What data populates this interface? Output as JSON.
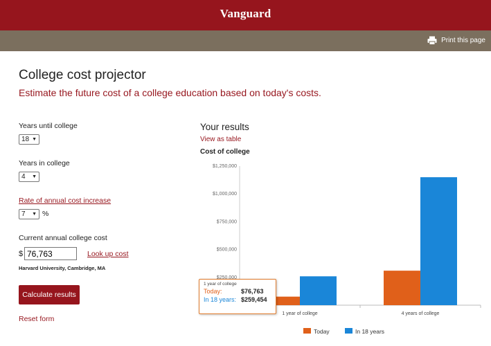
{
  "header": {
    "brand": "Vanguard"
  },
  "toolbar": {
    "print_label": "Print this page"
  },
  "page": {
    "title": "College cost projector",
    "subtitle": "Estimate the future cost of a college education based on today's costs."
  },
  "form": {
    "years_until_label": "Years until college",
    "years_until_value": "18",
    "years_in_label": "Years in college",
    "years_in_value": "4",
    "rate_label": "Rate of annual cost increase",
    "rate_value": "7",
    "rate_unit": "%",
    "cost_label": "Current annual college cost",
    "currency_symbol": "$",
    "cost_value": "76,763",
    "lookup_label": "Look up cost",
    "school_name": "Harvard University, Cambridge, MA",
    "calculate_label": "Calculate results",
    "reset_label": "Reset form"
  },
  "results": {
    "title": "Your results",
    "view_table_label": "View as table"
  },
  "chart_data": {
    "type": "bar",
    "title": "Cost of college",
    "categories": [
      "1 year of college",
      "4 years of college"
    ],
    "series": [
      {
        "name": "Today",
        "color": "#e0601a",
        "values": [
          76763,
          310000
        ]
      },
      {
        "name": "In 18 years",
        "color": "#1a86d8",
        "values": [
          259454,
          1150000
        ]
      }
    ],
    "yticks": [
      "$250,000",
      "$500,000",
      "$750,000",
      "$1,000,000",
      "$1,250,000"
    ],
    "ylim": [
      0,
      1250000
    ],
    "grid": false,
    "legend": "bottom-center",
    "tooltip": {
      "header": "1 year of college",
      "today_label": "Today:",
      "today_value": "$76,763",
      "future_label": "In 18 years:",
      "future_value": "$259,454"
    }
  }
}
